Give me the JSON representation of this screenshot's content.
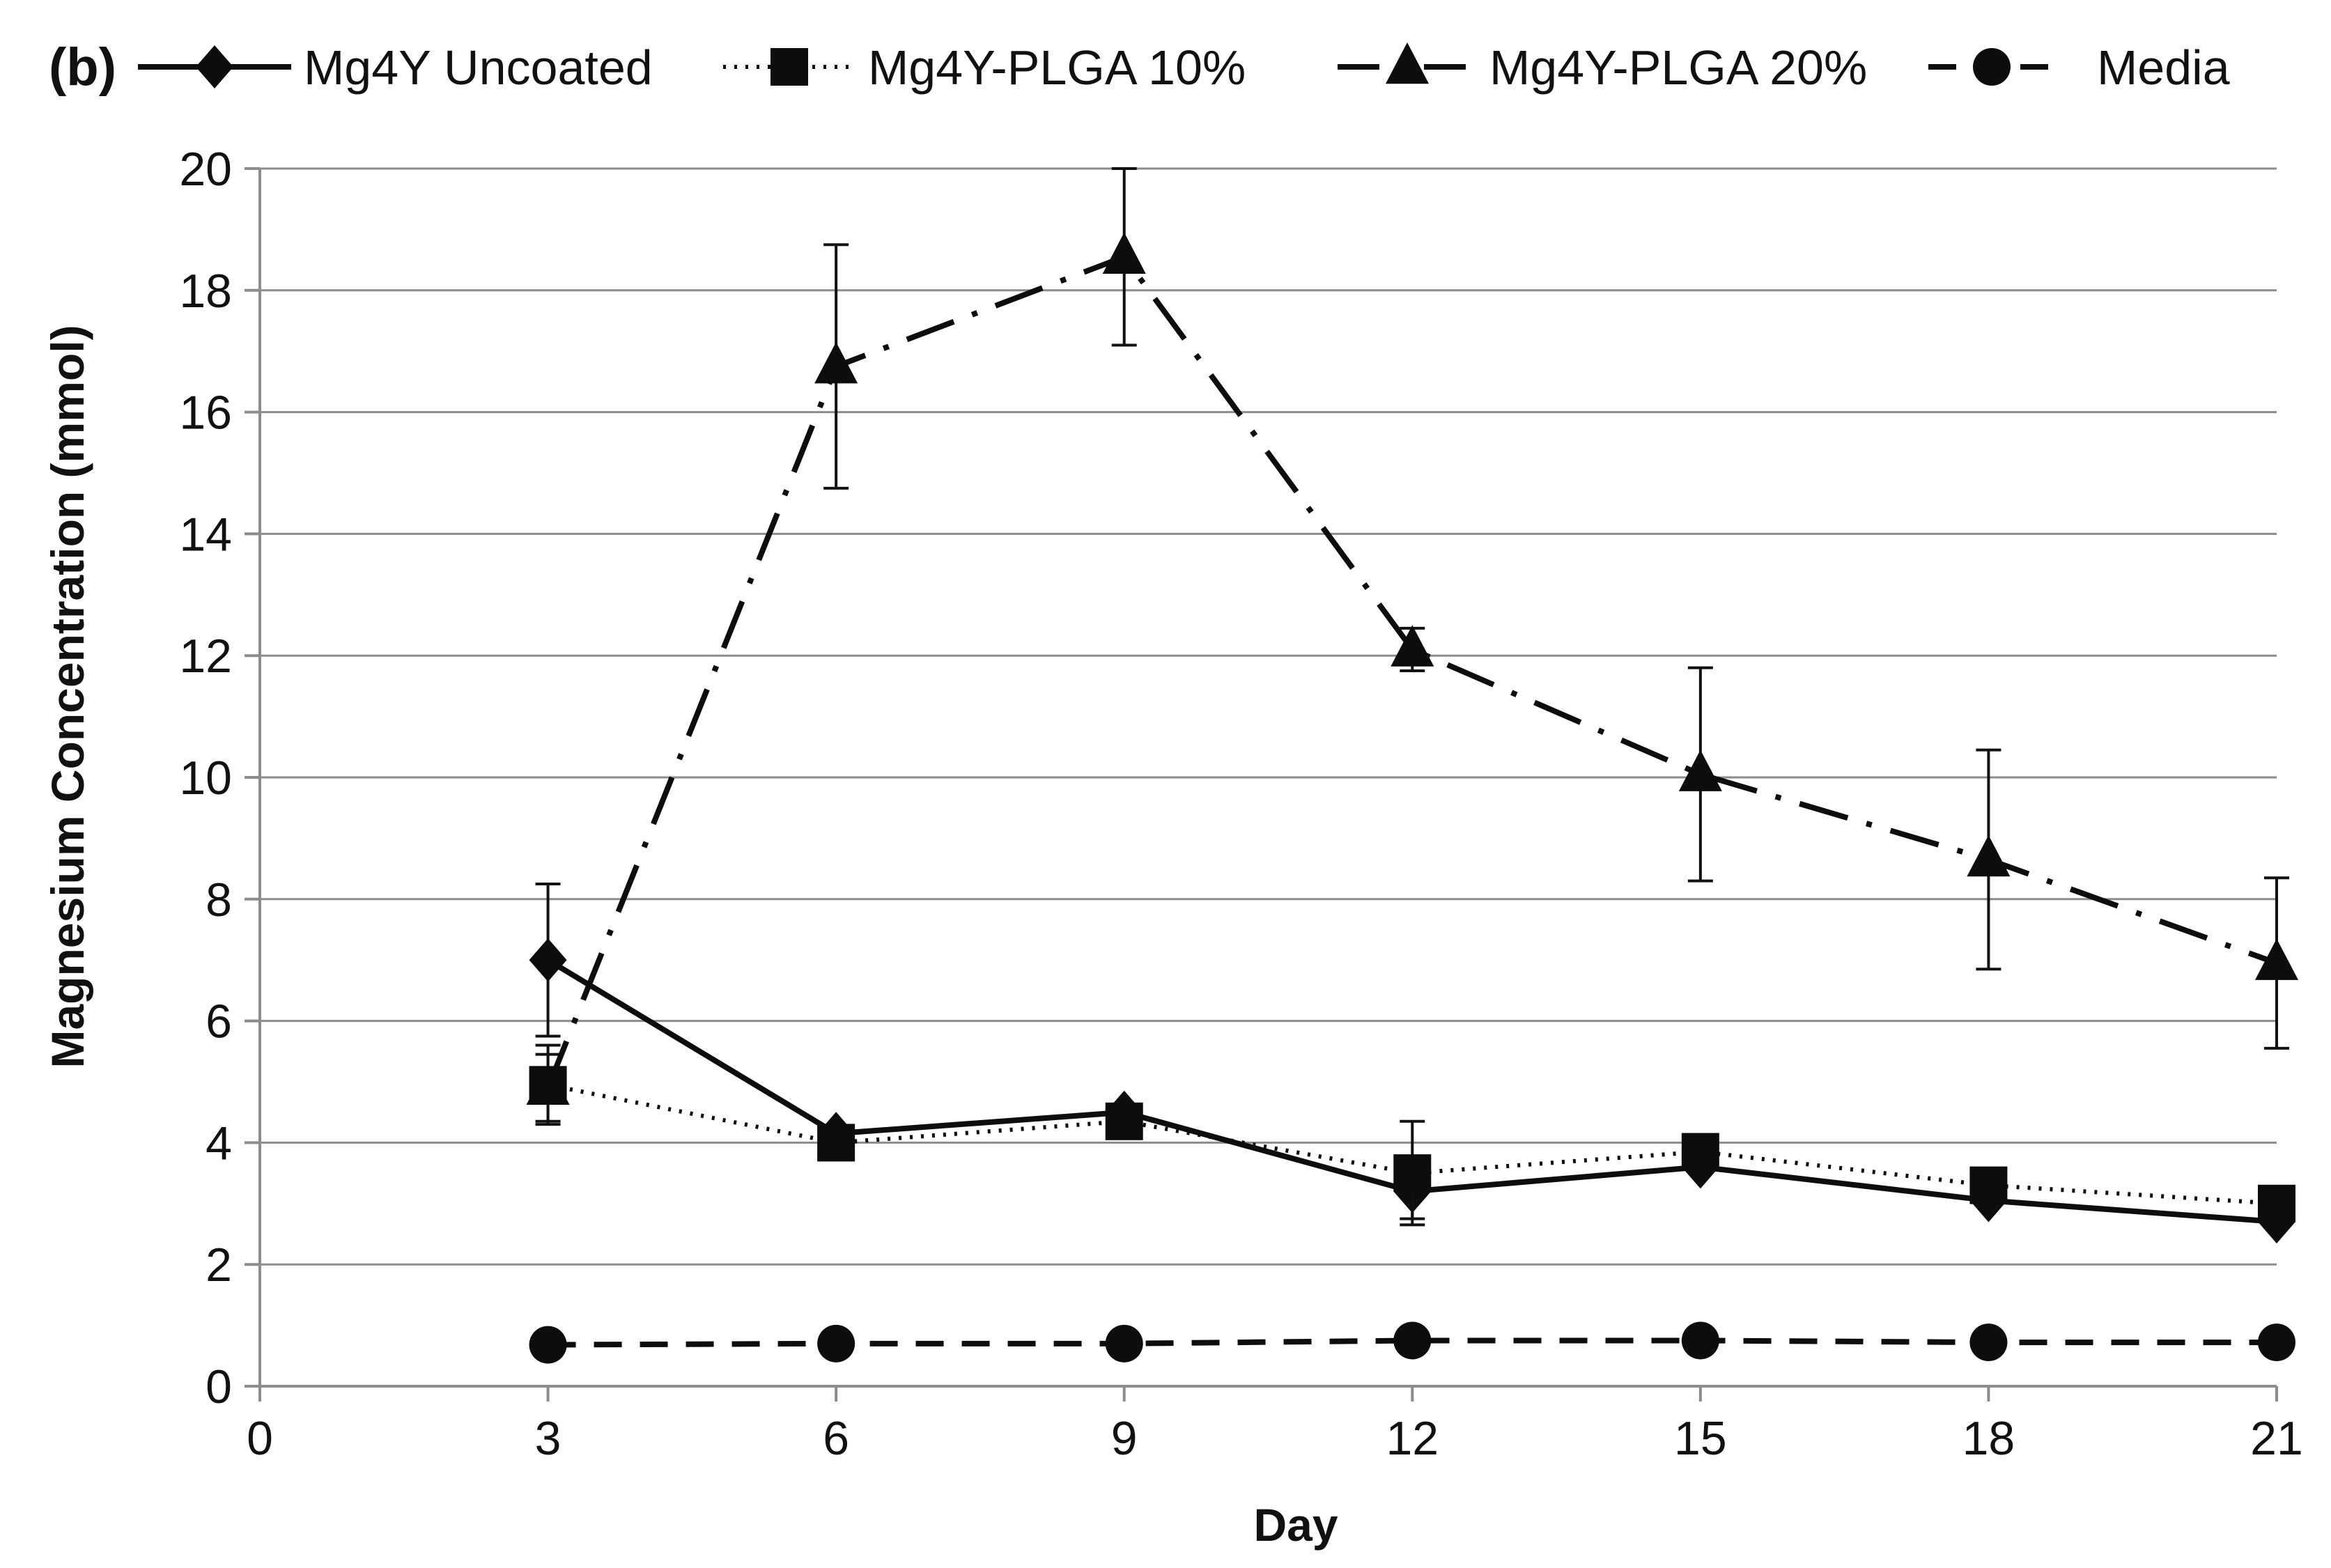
{
  "chart_data": {
    "type": "line",
    "panel_label": "(b)",
    "xlabel": "Day",
    "ylabel": "Magnesium Concentration (mmol)",
    "xlim": [
      0,
      21
    ],
    "ylim": [
      0,
      20
    ],
    "x_ticks": [
      "0",
      "3",
      "6",
      "9",
      "12",
      "15",
      "18",
      "21"
    ],
    "y_ticks": [
      "0",
      "2",
      "4",
      "6",
      "8",
      "10",
      "12",
      "14",
      "16",
      "18",
      "20"
    ],
    "grid": "horizontal",
    "legend_position": "top",
    "x": [
      3,
      6,
      9,
      12,
      15,
      18,
      21
    ],
    "series": [
      {
        "name": "Mg4Y Uncoated",
        "marker": "diamond",
        "line_style": "solid",
        "values": [
          7.0,
          4.15,
          4.5,
          3.2,
          3.6,
          3.05,
          2.7
        ],
        "errors": [
          1.25,
          0.0,
          0.0,
          0.45,
          0.0,
          0.0,
          0.0
        ]
      },
      {
        "name": "Mg4Y-PLGA 10%",
        "marker": "square",
        "line_style": "dotted",
        "values": [
          4.95,
          4.0,
          4.35,
          3.5,
          3.85,
          3.3,
          3.0
        ],
        "errors": [
          0.65,
          0.0,
          0.0,
          0.85,
          0.0,
          0.0,
          0.0
        ]
      },
      {
        "name": "Mg4Y-PLGA 20%",
        "marker": "triangle",
        "line_style": "dash-dot",
        "values": [
          4.9,
          16.75,
          18.55,
          12.1,
          10.05,
          8.65,
          6.95
        ],
        "errors": [
          0.55,
          2.0,
          1.45,
          0.35,
          1.75,
          1.8,
          1.4
        ]
      },
      {
        "name": "Media",
        "marker": "circle",
        "line_style": "dashed",
        "values": [
          0.68,
          0.7,
          0.7,
          0.75,
          0.75,
          0.72,
          0.72
        ],
        "errors": [
          0,
          0,
          0,
          0,
          0,
          0,
          0
        ]
      }
    ]
  }
}
